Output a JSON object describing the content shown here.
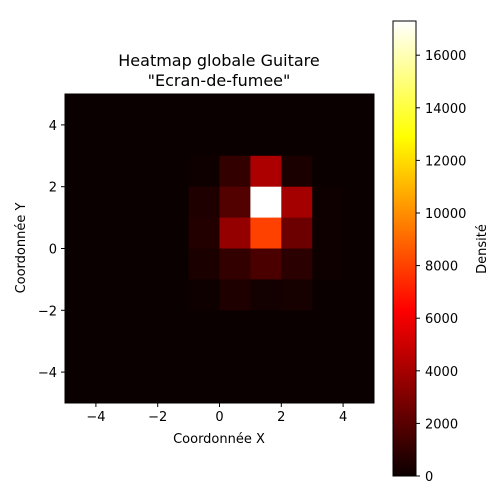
{
  "chart_data": {
    "type": "heatmap",
    "title": "Heatmap globale Guitare",
    "subtitle": "\"Ecran-de-fumee\"",
    "xlabel": "Coordonnée X",
    "ylabel": "Coordonnée Y",
    "colorbar_label": "Densité",
    "colormap": "hot",
    "xlim": [
      -5,
      5
    ],
    "ylim": [
      -5,
      5
    ],
    "x_ticks": [
      -4,
      -2,
      0,
      2,
      4
    ],
    "y_ticks": [
      -4,
      -2,
      0,
      2,
      4
    ],
    "x_tick_labels": [
      "−4",
      "−2",
      "0",
      "2",
      "4"
    ],
    "y_tick_labels": [
      "−4",
      "−2",
      "0",
      "2",
      "4"
    ],
    "x_edges": [
      -5,
      -4,
      -3,
      -2,
      -1,
      0,
      1,
      2,
      3,
      4,
      5
    ],
    "y_edges": [
      -5,
      -4,
      -3,
      -2,
      -1,
      0,
      1,
      2,
      3,
      4,
      5
    ],
    "colorbar_range": [
      0,
      17300
    ],
    "colorbar_ticks": [
      0,
      2000,
      4000,
      6000,
      8000,
      10000,
      12000,
      14000,
      16000
    ],
    "colorbar_tick_labels": [
      "0",
      "2000",
      "4000",
      "6000",
      "8000",
      "10000",
      "12000",
      "14000",
      "16000"
    ],
    "values_row_order": "top row first (y from 5 down to -5)",
    "values": [
      [
        0,
        0,
        0,
        0,
        0,
        0,
        0,
        0,
        0,
        0
      ],
      [
        0,
        0,
        0,
        0,
        0,
        0,
        0,
        0,
        0,
        0
      ],
      [
        0,
        0,
        0,
        0,
        100,
        1000,
        4000,
        400,
        0,
        0
      ],
      [
        0,
        0,
        0,
        0,
        500,
        1800,
        17300,
        3800,
        100,
        0
      ],
      [
        0,
        0,
        0,
        0,
        600,
        3400,
        8000,
        2400,
        100,
        0
      ],
      [
        0,
        0,
        0,
        0,
        400,
        1000,
        1600,
        800,
        100,
        0
      ],
      [
        0,
        0,
        0,
        0,
        100,
        500,
        200,
        300,
        0,
        0
      ],
      [
        0,
        0,
        0,
        0,
        0,
        0,
        0,
        0,
        0,
        0
      ],
      [
        0,
        0,
        0,
        0,
        0,
        0,
        0,
        0,
        0,
        0
      ],
      [
        0,
        0,
        0,
        0,
        0,
        0,
        0,
        0,
        0,
        0
      ]
    ]
  }
}
